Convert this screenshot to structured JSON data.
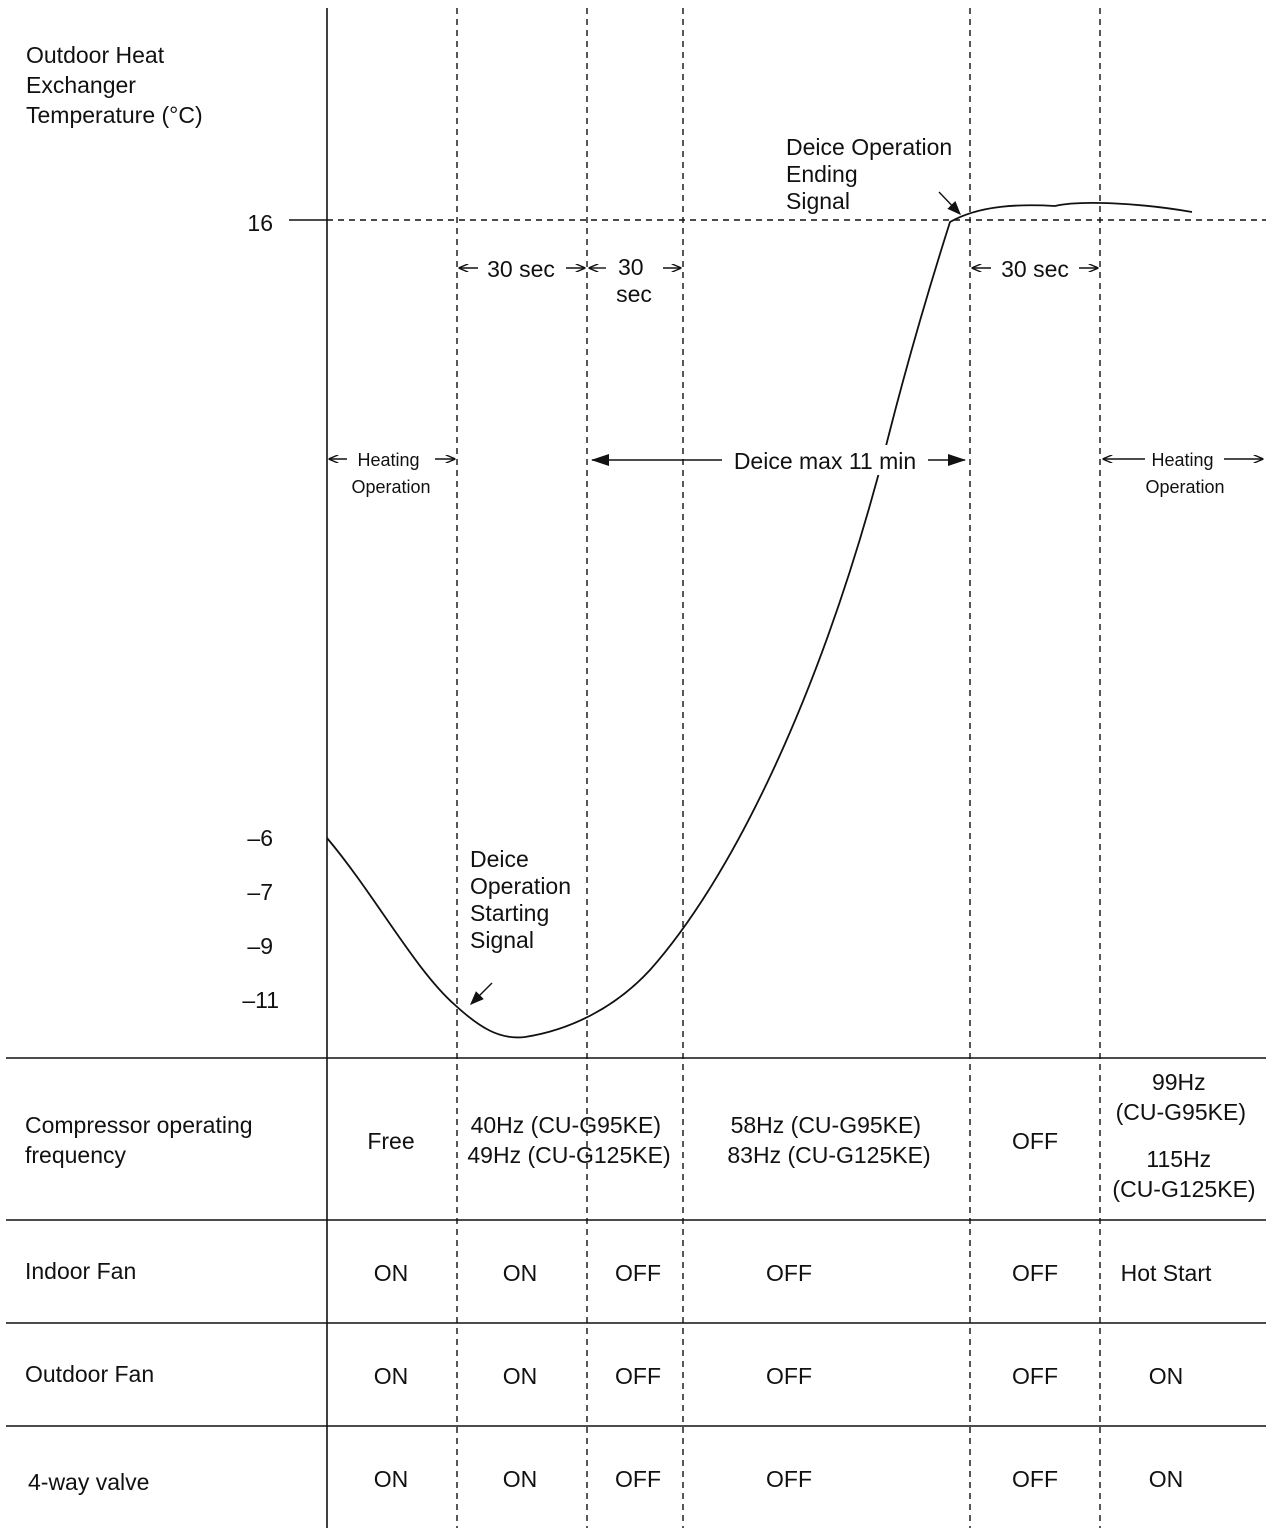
{
  "y_axis": {
    "label_lines": [
      "Outdoor Heat",
      "Exchanger",
      "Temperature (°C)"
    ],
    "ticks": [
      "16",
      "–6",
      "–7",
      "–9",
      "–11"
    ]
  },
  "annotations": {
    "deice_end_lines": [
      "Deice Operation",
      "Ending",
      "Signal"
    ],
    "deice_start_lines": [
      "Deice",
      "Operation",
      "Starting",
      "Signal"
    ],
    "timing_1": "30 sec",
    "timing_2_lines": [
      "30",
      "sec"
    ],
    "timing_3": "30 sec",
    "heating_left_lines": [
      "Heating",
      "Operation"
    ],
    "heating_right_lines": [
      "Heating",
      "Operation"
    ],
    "deice_max": "Deice max 11 min"
  },
  "table": {
    "compressor": {
      "label_lines": [
        "Compressor operating",
        "frequency"
      ],
      "col1": "Free",
      "col2_lines": [
        "40Hz (CU-G95KE)",
        "49Hz (CU-G125KE)"
      ],
      "col3_lines": [
        "58Hz (CU-G95KE)",
        "83Hz (CU-G125KE)"
      ],
      "col4": "OFF",
      "col5_lines": [
        "99Hz",
        "(CU-G95KE)",
        "115Hz",
        "(CU-G125KE)"
      ]
    },
    "indoor_fan": {
      "label": "Indoor Fan",
      "values": [
        "ON",
        "ON",
        "OFF",
        "OFF",
        "OFF",
        "Hot Start"
      ]
    },
    "outdoor_fan": {
      "label": "Outdoor Fan",
      "values": [
        "ON",
        "ON",
        "OFF",
        "OFF",
        "OFF",
        "ON"
      ]
    },
    "four_way_valve": {
      "label": "4-way valve",
      "values": [
        "ON",
        "ON",
        "OFF",
        "OFF",
        "OFF",
        "ON"
      ]
    }
  }
}
